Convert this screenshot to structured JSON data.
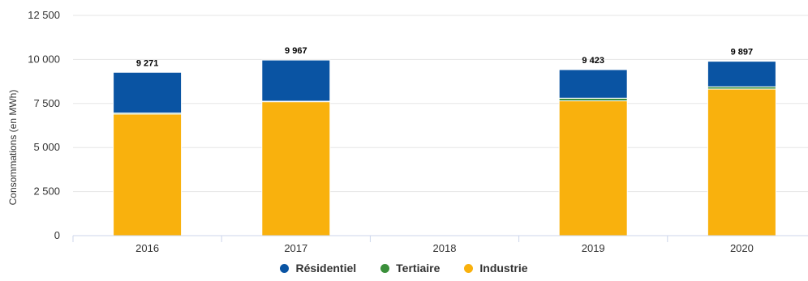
{
  "chart_data": {
    "type": "bar",
    "stacked": true,
    "categories": [
      "2016",
      "2017",
      "2018",
      "2019",
      "2020"
    ],
    "series": [
      {
        "name": "Industrie",
        "color": "#f9b10d",
        "values": [
          6900,
          7600,
          null,
          7650,
          8320
        ]
      },
      {
        "name": "Tertiaire",
        "color": "#3a8f3a",
        "values": [
          60,
          30,
          null,
          150,
          130
        ]
      },
      {
        "name": "Résidentiel",
        "color": "#0a54a3",
        "values": [
          2311,
          2337,
          null,
          1623,
          1447
        ]
      }
    ],
    "totals": [
      9271,
      9967,
      null,
      9423,
      9897
    ],
    "total_labels": [
      "9 271",
      "9 967",
      "",
      "9 423",
      "9 897"
    ],
    "ylabel": "Consommations (en MWh)",
    "ylim": [
      0,
      12500
    ],
    "yticks": [
      0,
      2500,
      5000,
      7500,
      10000,
      12500
    ],
    "ytick_labels": [
      "0",
      "2 500",
      "5 000",
      "7 500",
      "10 000",
      "12 500"
    ],
    "grid": true,
    "legend": {
      "position": "bottom",
      "order": [
        "Résidentiel",
        "Tertiaire",
        "Industrie"
      ]
    }
  }
}
